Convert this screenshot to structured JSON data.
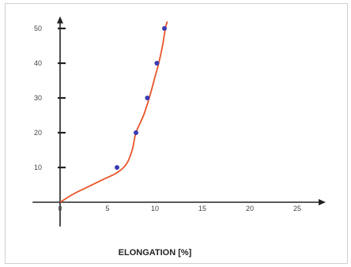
{
  "chart_data": {
    "type": "line",
    "title": "",
    "xlabel": "ELONGATION [%]",
    "ylabel": "",
    "xlim": [
      -1.5,
      28
    ],
    "ylim": [
      -7,
      52
    ],
    "x_ticks": [
      0,
      5,
      10,
      15,
      20,
      25
    ],
    "x_tick_labels": [
      "0",
      "5",
      "10",
      "15",
      "20",
      "25"
    ],
    "y_ticks": [
      10,
      20,
      30,
      40,
      50
    ],
    "y_tick_labels": [
      "10",
      "20",
      "30",
      "40",
      "50"
    ],
    "grid": false,
    "series": [
      {
        "curve": [
          [
            0,
            0
          ],
          [
            1.5,
            2.5
          ],
          [
            3,
            4.5
          ],
          [
            4.5,
            6.5
          ],
          [
            6,
            8.5
          ],
          [
            7,
            11
          ],
          [
            7.6,
            15
          ],
          [
            8,
            20
          ],
          [
            8.8,
            25
          ],
          [
            9.4,
            30
          ],
          [
            10,
            36
          ],
          [
            10.4,
            40
          ],
          [
            10.8,
            45
          ],
          [
            11.1,
            50
          ],
          [
            11.3,
            52
          ]
        ],
        "markers": [
          [
            6,
            10
          ],
          [
            8,
            20
          ],
          [
            9.2,
            30
          ],
          [
            10.2,
            40
          ],
          [
            11,
            50
          ]
        ],
        "line_color": "#e8542a",
        "marker_color": "#3b3bb3"
      }
    ],
    "axis_color": "#222222"
  }
}
